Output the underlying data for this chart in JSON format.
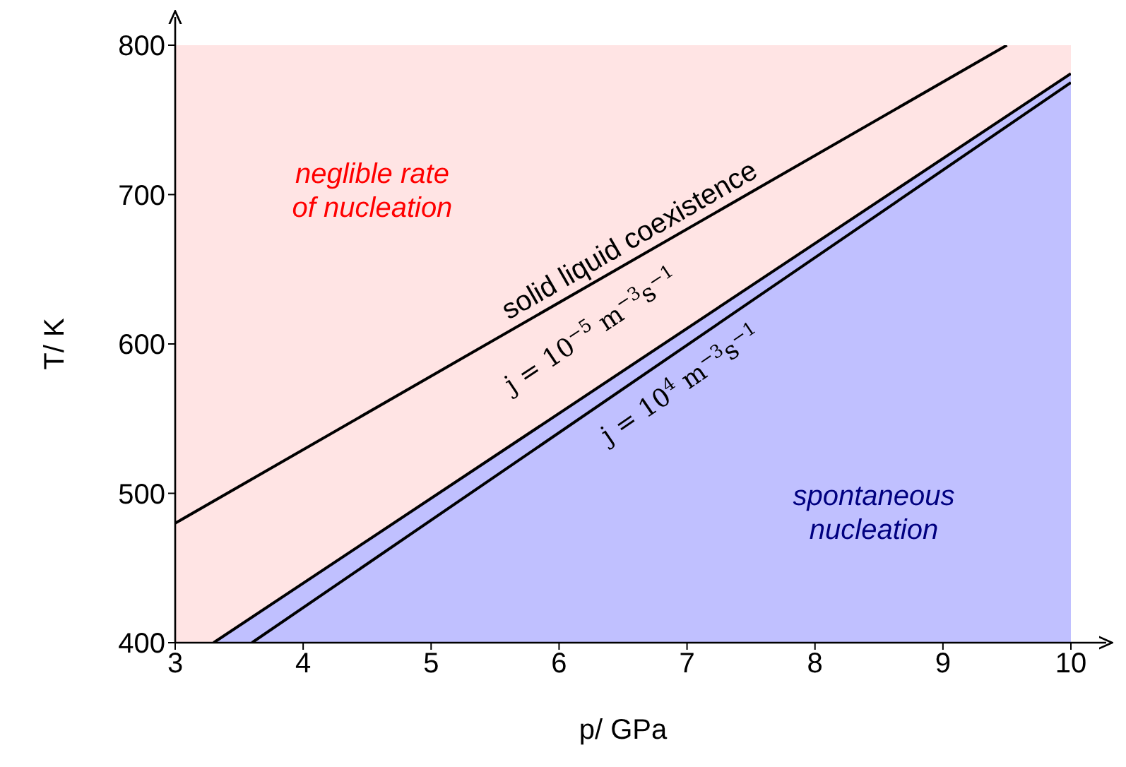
{
  "chart_data": {
    "type": "line",
    "xlabel": "p/ GPa",
    "ylabel": "T/ K",
    "xlim": [
      3,
      10
    ],
    "ylim": [
      400,
      800
    ],
    "xticks": [
      3,
      4,
      5,
      6,
      7,
      8,
      9,
      10
    ],
    "yticks": [
      400,
      500,
      600,
      700,
      800
    ],
    "marker": "none",
    "bands": [
      {
        "axis": "y",
        "from": 400,
        "to": 800,
        "color": "#ffe4e4"
      }
    ],
    "series": [
      {
        "type": "area",
        "color": "#c0c0ff",
        "x": [
          3.3,
          10
        ],
        "values": [
          400,
          781
        ]
      },
      {
        "color": "#000000",
        "x": [
          3,
          9.5
        ],
        "values": [
          480,
          800
        ]
      },
      {
        "color": "#000000",
        "x": [
          3.6,
          10
        ],
        "values": [
          400,
          775
        ]
      }
    ],
    "annotations": [
      "neglible rate of nucleation",
      "spontaneous nucleation",
      "solid liquid coexistence",
      "j = 10$^{−5}$ m$^{−3}$s$^{−1}$",
      "j = 10$^{4}$ m$^{−3}$s$^{−1}$"
    ]
  }
}
